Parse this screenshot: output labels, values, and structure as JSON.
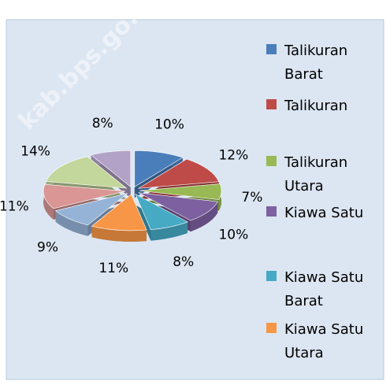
{
  "watermark": "kab.bps.go.",
  "chart_data": {
    "type": "pie",
    "categories": [
      "Talikuran Barat",
      "Talikuran",
      "Talikuran Utara",
      "Kiawa Satu",
      "Kiawa Satu Barat",
      "Kiawa Satu Utara",
      null,
      null,
      null,
      null
    ],
    "values": [
      10,
      12,
      7,
      10,
      8,
      11,
      9,
      11,
      14,
      8
    ],
    "value_labels": [
      "10%",
      "12%",
      "7%",
      "10%",
      "8%",
      "11%",
      "9%",
      "11%",
      "14%",
      "8%"
    ],
    "colors": [
      "#4a7ebb",
      "#be4b48",
      "#98b954",
      "#7d60a0",
      "#46aac5",
      "#f79646",
      "#95b3d7",
      "#d99694",
      "#c3d69b",
      "#b3a2c7"
    ],
    "legend": "right"
  }
}
